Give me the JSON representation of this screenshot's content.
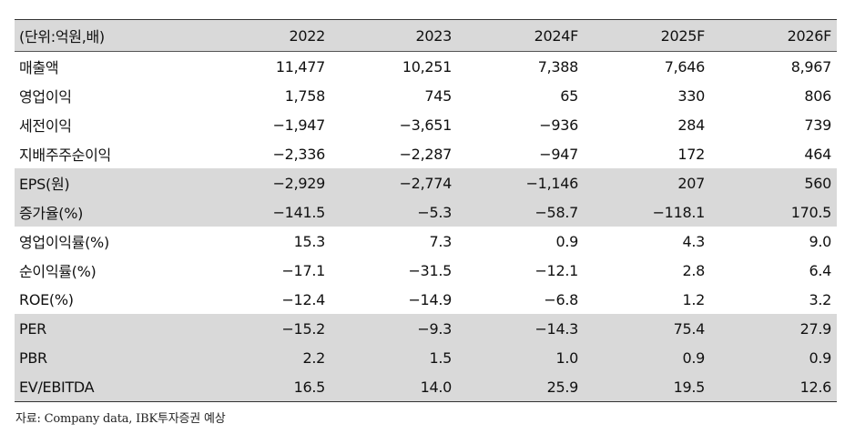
{
  "table": {
    "unit_label": "(단위:억원,배)",
    "years": [
      "2022",
      "2023",
      "2024F",
      "2025F",
      "2026F"
    ],
    "rows": [
      {
        "label": "매출액",
        "values": [
          "11,477",
          "10,251",
          "7,388",
          "7,646",
          "8,967"
        ],
        "shaded": false
      },
      {
        "label": "영업이익",
        "values": [
          "1,758",
          "745",
          "65",
          "330",
          "806"
        ],
        "shaded": false
      },
      {
        "label": "세전이익",
        "values": [
          "−1,947",
          "−3,651",
          "−936",
          "284",
          "739"
        ],
        "shaded": false
      },
      {
        "label": "지배주주순이익",
        "values": [
          "−2,336",
          "−2,287",
          "−947",
          "172",
          "464"
        ],
        "shaded": false
      },
      {
        "label": "EPS(원)",
        "values": [
          "−2,929",
          "−2,774",
          "−1,146",
          "207",
          "560"
        ],
        "shaded": true
      },
      {
        "label": "증가율(%)",
        "values": [
          "−141.5",
          "−5.3",
          "−58.7",
          "−118.1",
          "170.5"
        ],
        "shaded": true
      },
      {
        "label": "영업이익률(%)",
        "values": [
          "15.3",
          "7.3",
          "0.9",
          "4.3",
          "9.0"
        ],
        "shaded": false
      },
      {
        "label": "순이익률(%)",
        "values": [
          "−17.1",
          "−31.5",
          "−12.1",
          "2.8",
          "6.4"
        ],
        "shaded": false
      },
      {
        "label": "ROE(%)",
        "values": [
          "−12.4",
          "−14.9",
          "−6.8",
          "1.2",
          "3.2"
        ],
        "shaded": false
      },
      {
        "label": "PER",
        "values": [
          "−15.2",
          "−9.3",
          "−14.3",
          "75.4",
          "27.9"
        ],
        "shaded": true
      },
      {
        "label": "PBR",
        "values": [
          "2.2",
          "1.5",
          "1.0",
          "0.9",
          "0.9"
        ],
        "shaded": true
      },
      {
        "label": "EV/EBITDA",
        "values": [
          "16.5",
          "14.0",
          "25.9",
          "19.5",
          "12.6"
        ],
        "shaded": true
      }
    ]
  },
  "source": "자료: Company data, IBK투자증권 예상",
  "colors": {
    "shade": "#d9d9d9",
    "rule": "#333333",
    "text": "#111111"
  }
}
